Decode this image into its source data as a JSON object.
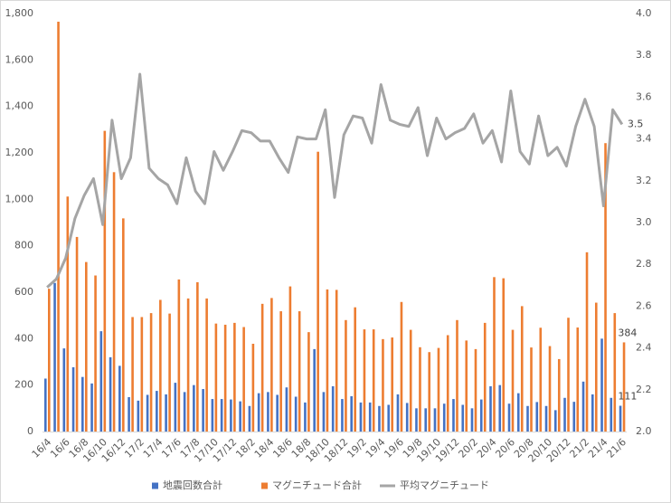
{
  "chart_data": {
    "type": "bar",
    "categories": [
      "16/4",
      null,
      "16/6",
      null,
      "16/8",
      null,
      "16/10",
      null,
      "16/12",
      null,
      "17/2",
      null,
      "17/4",
      null,
      "17/6",
      null,
      "17/8",
      null,
      "17/10",
      null,
      "17/12",
      null,
      "18/2",
      null,
      "18/4",
      null,
      "18/6",
      null,
      "18/8",
      null,
      "18/10",
      null,
      "18/12",
      null,
      "19/2",
      null,
      "19/4",
      null,
      "19/6",
      null,
      "19/8",
      null,
      "19/10",
      null,
      "19/12",
      null,
      "20/2",
      null,
      "20/4",
      null,
      "20/6",
      null,
      "20/8",
      null,
      "20/10",
      null,
      "20/12",
      null,
      "21/2",
      null,
      "21/4",
      null,
      "21/6"
    ],
    "series": [
      {
        "name": "地震回数合計",
        "type": "bar",
        "color": "#4472c4",
        "values": [
          228,
          640,
          358,
          277,
          235,
          207,
          432,
          320,
          283,
          148,
          133,
          158,
          175,
          160,
          210,
          170,
          200,
          183,
          140,
          140,
          138,
          130,
          110,
          165,
          170,
          158,
          190,
          150,
          125,
          355,
          170,
          195,
          140,
          152,
          125,
          125,
          110,
          115,
          160,
          123,
          100,
          100,
          100,
          120,
          140,
          115,
          100,
          138,
          195,
          200,
          120,
          165,
          110,
          127,
          110,
          92,
          145,
          128,
          215,
          160,
          400,
          145,
          111
        ],
        "value_labels": [
          null,
          null,
          null,
          null,
          null,
          null,
          null,
          null,
          null,
          null,
          null,
          null,
          null,
          null,
          null,
          null,
          null,
          null,
          null,
          null,
          null,
          null,
          null,
          null,
          null,
          null,
          null,
          null,
          null,
          null,
          null,
          null,
          null,
          null,
          null,
          null,
          null,
          null,
          null,
          null,
          null,
          null,
          null,
          null,
          null,
          null,
          null,
          null,
          null,
          null,
          null,
          null,
          null,
          null,
          null,
          null,
          null,
          null,
          null,
          null,
          null,
          null,
          "111"
        ]
      },
      {
        "name": "マグニチュード合計",
        "type": "bar",
        "color": "#ed7d31",
        "values": [
          615,
          1765,
          1012,
          838,
          730,
          672,
          1295,
          1117,
          918,
          493,
          493,
          510,
          567,
          508,
          655,
          573,
          643,
          573,
          465,
          460,
          468,
          450,
          378,
          550,
          575,
          518,
          625,
          518,
          428,
          1205,
          612,
          610,
          480,
          535,
          440,
          440,
          398,
          405,
          558,
          438,
          363,
          342,
          360,
          415,
          480,
          392,
          355,
          468,
          665,
          660,
          438,
          540,
          362,
          447,
          368,
          312,
          490,
          448,
          772,
          555,
          1242,
          510,
          384
        ],
        "value_labels": [
          null,
          null,
          null,
          null,
          null,
          null,
          null,
          null,
          null,
          null,
          null,
          null,
          null,
          null,
          null,
          null,
          null,
          null,
          null,
          null,
          null,
          null,
          null,
          null,
          null,
          null,
          null,
          null,
          null,
          null,
          null,
          null,
          null,
          null,
          null,
          null,
          null,
          null,
          null,
          null,
          null,
          null,
          null,
          null,
          null,
          null,
          null,
          null,
          null,
          null,
          null,
          null,
          null,
          null,
          null,
          null,
          null,
          null,
          null,
          null,
          null,
          null,
          "384"
        ]
      },
      {
        "name": "平均マグニチュード",
        "type": "line",
        "axis": "y2",
        "color": "#a5a5a5",
        "values": [
          2.69,
          2.73,
          2.83,
          3.02,
          3.13,
          3.21,
          2.99,
          3.49,
          3.21,
          3.31,
          3.71,
          3.26,
          3.21,
          3.18,
          3.09,
          3.31,
          3.15,
          3.09,
          3.34,
          3.25,
          3.34,
          3.44,
          3.43,
          3.39,
          3.39,
          3.31,
          3.24,
          3.41,
          3.4,
          3.4,
          3.54,
          3.12,
          3.42,
          3.51,
          3.5,
          3.38,
          3.66,
          3.49,
          3.47,
          3.46,
          3.55,
          3.32,
          3.5,
          3.4,
          3.43,
          3.45,
          3.52,
          3.38,
          3.44,
          3.29,
          3.63,
          3.34,
          3.28,
          3.51,
          3.32,
          3.36,
          3.27,
          3.46,
          3.59,
          3.46,
          3.08,
          3.54,
          3.47
        ],
        "value_labels": [
          null,
          null,
          null,
          null,
          null,
          null,
          null,
          null,
          null,
          null,
          null,
          null,
          null,
          null,
          null,
          null,
          null,
          null,
          null,
          null,
          null,
          null,
          null,
          null,
          null,
          null,
          null,
          null,
          null,
          null,
          null,
          null,
          null,
          null,
          null,
          null,
          null,
          null,
          null,
          null,
          null,
          null,
          null,
          null,
          null,
          null,
          null,
          null,
          null,
          null,
          null,
          null,
          null,
          null,
          null,
          null,
          null,
          null,
          null,
          null,
          null,
          null,
          "3.5"
        ]
      }
    ],
    "ylim": [
      0,
      1800
    ],
    "yticks": [
      0,
      200,
      400,
      600,
      800,
      {
        "value": 1000,
        "label": "1,000"
      },
      {
        "value": 1200,
        "label": "1,200"
      },
      {
        "value": 1400,
        "label": "1,400"
      },
      {
        "value": 1600,
        "label": "1,600"
      },
      {
        "value": 1800,
        "label": "1,800"
      }
    ],
    "y2lim": [
      2.0,
      4.0
    ],
    "y2ticks": [
      {
        "value": 2.0,
        "label": "2.0"
      },
      2.2,
      2.4,
      2.6,
      2.8,
      {
        "value": 3.0,
        "label": "3.0"
      },
      3.2,
      3.4,
      3.6,
      3.8,
      {
        "value": 4.0,
        "label": "4.0"
      }
    ],
    "grid": false,
    "legend": "bottom"
  }
}
